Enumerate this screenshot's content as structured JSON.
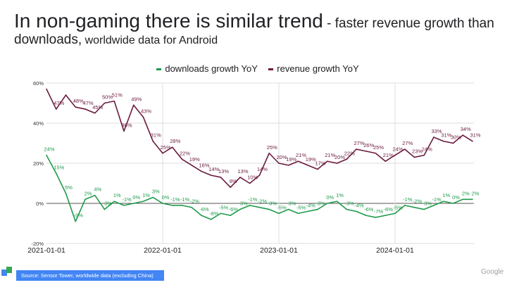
{
  "header": {
    "title_main": "In non-gaming there is similar trend",
    "title_rest": " - faster revenue growth than",
    "title_line2_a": "downloads,",
    "title_line2_b": " worldwide data for Android"
  },
  "footer": {
    "source": "Source: Sensor Tower, worldwide data (excluding China)",
    "logo_text": "Google"
  },
  "chart_data": {
    "type": "line",
    "x_start": "2021-01",
    "x_step": "month",
    "x_tick_labels": [
      "2021-01-01",
      "2022-01-01",
      "2023-01-01",
      "2024-01-01"
    ],
    "y_tick_labels": [
      "60%",
      "40%",
      "20%",
      "0%",
      "-20%"
    ],
    "y_ticks": [
      60,
      40,
      20,
      0,
      -20
    ],
    "ylim": [
      -20,
      60
    ],
    "grid": true,
    "legend_position": "top",
    "series": [
      {
        "name": "downloads growth YoY",
        "color": "#1e9b4b",
        "values": [
          24,
          15,
          5,
          -9,
          2,
          4,
          -3,
          1,
          -1,
          0,
          1,
          3,
          0,
          -1,
          -1,
          -2,
          -6,
          -8,
          -5,
          -6,
          -3,
          -1,
          -2,
          -3,
          -5,
          -3,
          -5,
          -4,
          -3,
          0,
          1,
          -3,
          -4,
          -6,
          -7,
          -6,
          -5,
          -1,
          -2,
          -3,
          -1,
          1,
          0,
          2,
          2
        ],
        "labels": [
          "24%",
          "15%",
          "5%",
          "-9%",
          "2%",
          "4%",
          "-3%",
          "1%",
          "-1%",
          "0%",
          "1%",
          "3%",
          "0%",
          "-1%",
          "-1%",
          "-2%",
          "-6%",
          "-8%",
          "-5%",
          "-6%",
          "-3%",
          "-1%",
          "-2%",
          "-3%",
          "-5%",
          "-3%",
          "-5%",
          "-4%",
          "-3%",
          "0%",
          "1%",
          "-3%",
          "-4%",
          "-6%",
          "-7%",
          "-6%",
          "-5%",
          "-1%",
          "-2%",
          "-3%",
          "-1%",
          "1%",
          "0%",
          "2%",
          "2%"
        ]
      },
      {
        "name": "revenue growth YoY",
        "color": "#6b1a3f",
        "values": [
          57,
          47,
          54,
          48,
          47,
          45,
          50,
          51,
          36,
          49,
          43,
          31,
          25,
          28,
          22,
          19,
          16,
          14,
          13,
          8,
          13,
          10,
          14,
          25,
          20,
          19,
          21,
          19,
          17,
          21,
          20,
          22,
          27,
          26,
          25,
          21,
          24,
          27,
          23,
          24,
          33,
          31,
          30,
          34,
          31
        ],
        "labels": [
          "",
          "47%",
          "",
          "48%",
          "47%",
          "45%",
          "50%",
          "51%",
          "36%",
          "49%",
          "43%",
          "31%",
          "25%",
          "28%",
          "22%",
          "19%",
          "16%",
          "14%",
          "13%",
          "8%",
          "13%",
          "10%",
          "14%",
          "25%",
          "20%",
          "19%",
          "21%",
          "19%",
          "17%",
          "21%",
          "20%",
          "22%",
          "27%",
          "26%",
          "25%",
          "21%",
          "24%",
          "27%",
          "23%",
          "24%",
          "33%",
          "31%",
          "30%",
          "34%",
          "31%"
        ]
      }
    ]
  }
}
